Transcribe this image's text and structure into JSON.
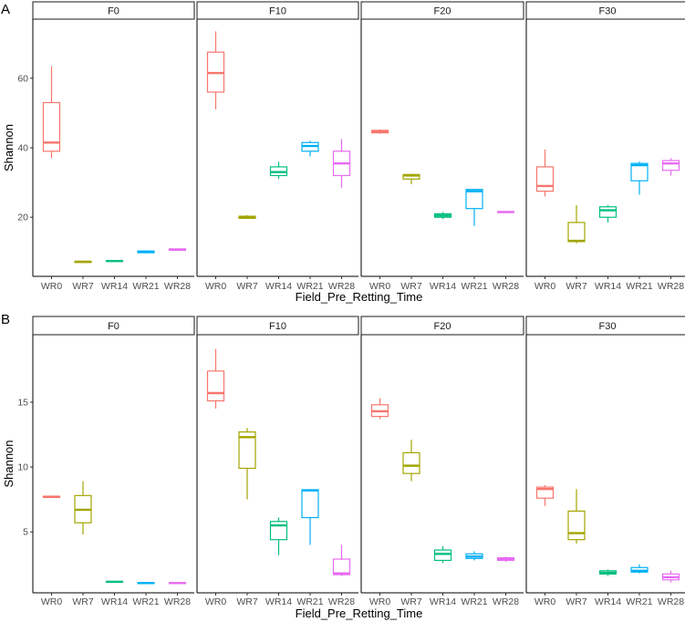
{
  "colors": {
    "WR0": "#F8766D",
    "WR7": "#A3A500",
    "WR14": "#00BF7D",
    "WR21": "#00B0F6",
    "WR28": "#E76BF3"
  },
  "chart_data": [
    {
      "type": "boxplot",
      "tag": "A",
      "facets": [
        "F0",
        "F10",
        "F20",
        "F30"
      ],
      "categories": [
        "WR0",
        "WR7",
        "WR14",
        "WR21",
        "WR28"
      ],
      "xlabel": "Field_Pre_Retting_Time",
      "ylabel": "Shannon",
      "ylim": [
        3,
        77
      ],
      "yticks": [
        20,
        40,
        60
      ],
      "boxes": {
        "F0": [
          {
            "min": 37,
            "q1": 39,
            "median": 41.5,
            "q3": 53,
            "max": 63.5
          },
          {
            "min": 7,
            "q1": 7,
            "median": 7.2,
            "q3": 7.3,
            "max": 7.4
          },
          {
            "min": 7.2,
            "q1": 7.3,
            "median": 7.4,
            "q3": 7.5,
            "max": 7.6
          },
          {
            "min": 9.6,
            "q1": 9.8,
            "median": 10,
            "q3": 10.3,
            "max": 10.5
          },
          {
            "min": 10.4,
            "q1": 10.5,
            "median": 10.7,
            "q3": 10.9,
            "max": 11
          }
        ],
        "F10": [
          {
            "min": 51,
            "q1": 56,
            "median": 61.5,
            "q3": 67.5,
            "max": 73.5
          },
          {
            "min": 19.5,
            "q1": 19.7,
            "median": 20,
            "q3": 20.3,
            "max": 20.6
          },
          {
            "min": 31,
            "q1": 32,
            "median": 33,
            "q3": 34.5,
            "max": 36
          },
          {
            "min": 37.5,
            "q1": 39,
            "median": 40.5,
            "q3": 41.5,
            "max": 42
          },
          {
            "min": 28.5,
            "q1": 32,
            "median": 35.5,
            "q3": 39,
            "max": 42.5
          }
        ],
        "F20": [
          {
            "min": 44,
            "q1": 44.3,
            "median": 44.7,
            "q3": 45,
            "max": 45.3
          },
          {
            "min": 29.5,
            "q1": 31,
            "median": 32,
            "q3": 32.3,
            "max": 32.5
          },
          {
            "min": 19.5,
            "q1": 20,
            "median": 20.5,
            "q3": 21,
            "max": 21.5
          },
          {
            "min": 17.5,
            "q1": 22.5,
            "median": 27.5,
            "q3": 28,
            "max": 28
          },
          {
            "min": 21.3,
            "q1": 21.4,
            "median": 21.5,
            "q3": 21.6,
            "max": 21.7
          }
        ],
        "F30": [
          {
            "min": 26,
            "q1": 27.5,
            "median": 29,
            "q3": 34.5,
            "max": 39.5
          },
          {
            "min": 12.5,
            "q1": 13,
            "median": 13.2,
            "q3": 18.5,
            "max": 23.5
          },
          {
            "min": 18.5,
            "q1": 20,
            "median": 22,
            "q3": 23,
            "max": 23.5
          },
          {
            "min": 26.5,
            "q1": 30.5,
            "median": 35,
            "q3": 35.5,
            "max": 36
          },
          {
            "min": 32,
            "q1": 33.5,
            "median": 35.5,
            "q3": 36.3,
            "max": 37
          }
        ]
      }
    },
    {
      "type": "boxplot",
      "tag": "B",
      "facets": [
        "F0",
        "F10",
        "F20",
        "F30"
      ],
      "categories": [
        "WR0",
        "WR7",
        "WR14",
        "WR21",
        "WR28"
      ],
      "xlabel": "Field_Pre_Retting_Time",
      "ylabel": "Shannon",
      "ylim": [
        0.3,
        20.2
      ],
      "yticks": [
        5,
        10,
        15
      ],
      "boxes": {
        "F0": [
          {
            "min": 7.6,
            "q1": 7.65,
            "median": 7.7,
            "q3": 7.75,
            "max": 7.8
          },
          {
            "min": 4.8,
            "q1": 5.7,
            "median": 6.7,
            "q3": 7.8,
            "max": 8.9
          },
          {
            "min": 1.1,
            "q1": 1.12,
            "median": 1.15,
            "q3": 1.18,
            "max": 1.2
          },
          {
            "min": 1.0,
            "q1": 1.02,
            "median": 1.05,
            "q3": 1.08,
            "max": 1.1
          },
          {
            "min": 1.0,
            "q1": 1.02,
            "median": 1.05,
            "q3": 1.08,
            "max": 1.1
          }
        ],
        "F10": [
          {
            "min": 14.5,
            "q1": 15.1,
            "median": 15.7,
            "q3": 17.4,
            "max": 19.1
          },
          {
            "min": 7.5,
            "q1": 9.9,
            "median": 12.3,
            "q3": 12.7,
            "max": 13
          },
          {
            "min": 3.2,
            "q1": 4.4,
            "median": 5.5,
            "q3": 5.8,
            "max": 6.1
          },
          {
            "min": 4.0,
            "q1": 6.1,
            "median": 8.2,
            "q3": 8.25,
            "max": 8.3
          },
          {
            "min": 1.6,
            "q1": 1.7,
            "median": 1.8,
            "q3": 2.9,
            "max": 4.0
          }
        ],
        "F20": [
          {
            "min": 13.7,
            "q1": 13.9,
            "median": 14.3,
            "q3": 14.8,
            "max": 15.3
          },
          {
            "min": 8.9,
            "q1": 9.5,
            "median": 10.1,
            "q3": 11.1,
            "max": 12.1
          },
          {
            "min": 2.6,
            "q1": 2.8,
            "median": 3.3,
            "q3": 3.6,
            "max": 3.9
          },
          {
            "min": 2.8,
            "q1": 2.95,
            "median": 3.1,
            "q3": 3.3,
            "max": 3.5
          },
          {
            "min": 2.7,
            "q1": 2.8,
            "median": 2.9,
            "q3": 3.0,
            "max": 3.1
          }
        ],
        "F30": [
          {
            "min": 7.0,
            "q1": 7.6,
            "median": 8.3,
            "q3": 8.45,
            "max": 8.6
          },
          {
            "min": 4.1,
            "q1": 4.4,
            "median": 4.9,
            "q3": 6.6,
            "max": 8.3
          },
          {
            "min": 1.6,
            "q1": 1.75,
            "median": 1.85,
            "q3": 2.0,
            "max": 2.1
          },
          {
            "min": 1.8,
            "q1": 1.9,
            "median": 2.0,
            "q3": 2.25,
            "max": 2.5
          },
          {
            "min": 1.1,
            "q1": 1.3,
            "median": 1.5,
            "q3": 1.75,
            "max": 2.0
          }
        ]
      }
    }
  ]
}
